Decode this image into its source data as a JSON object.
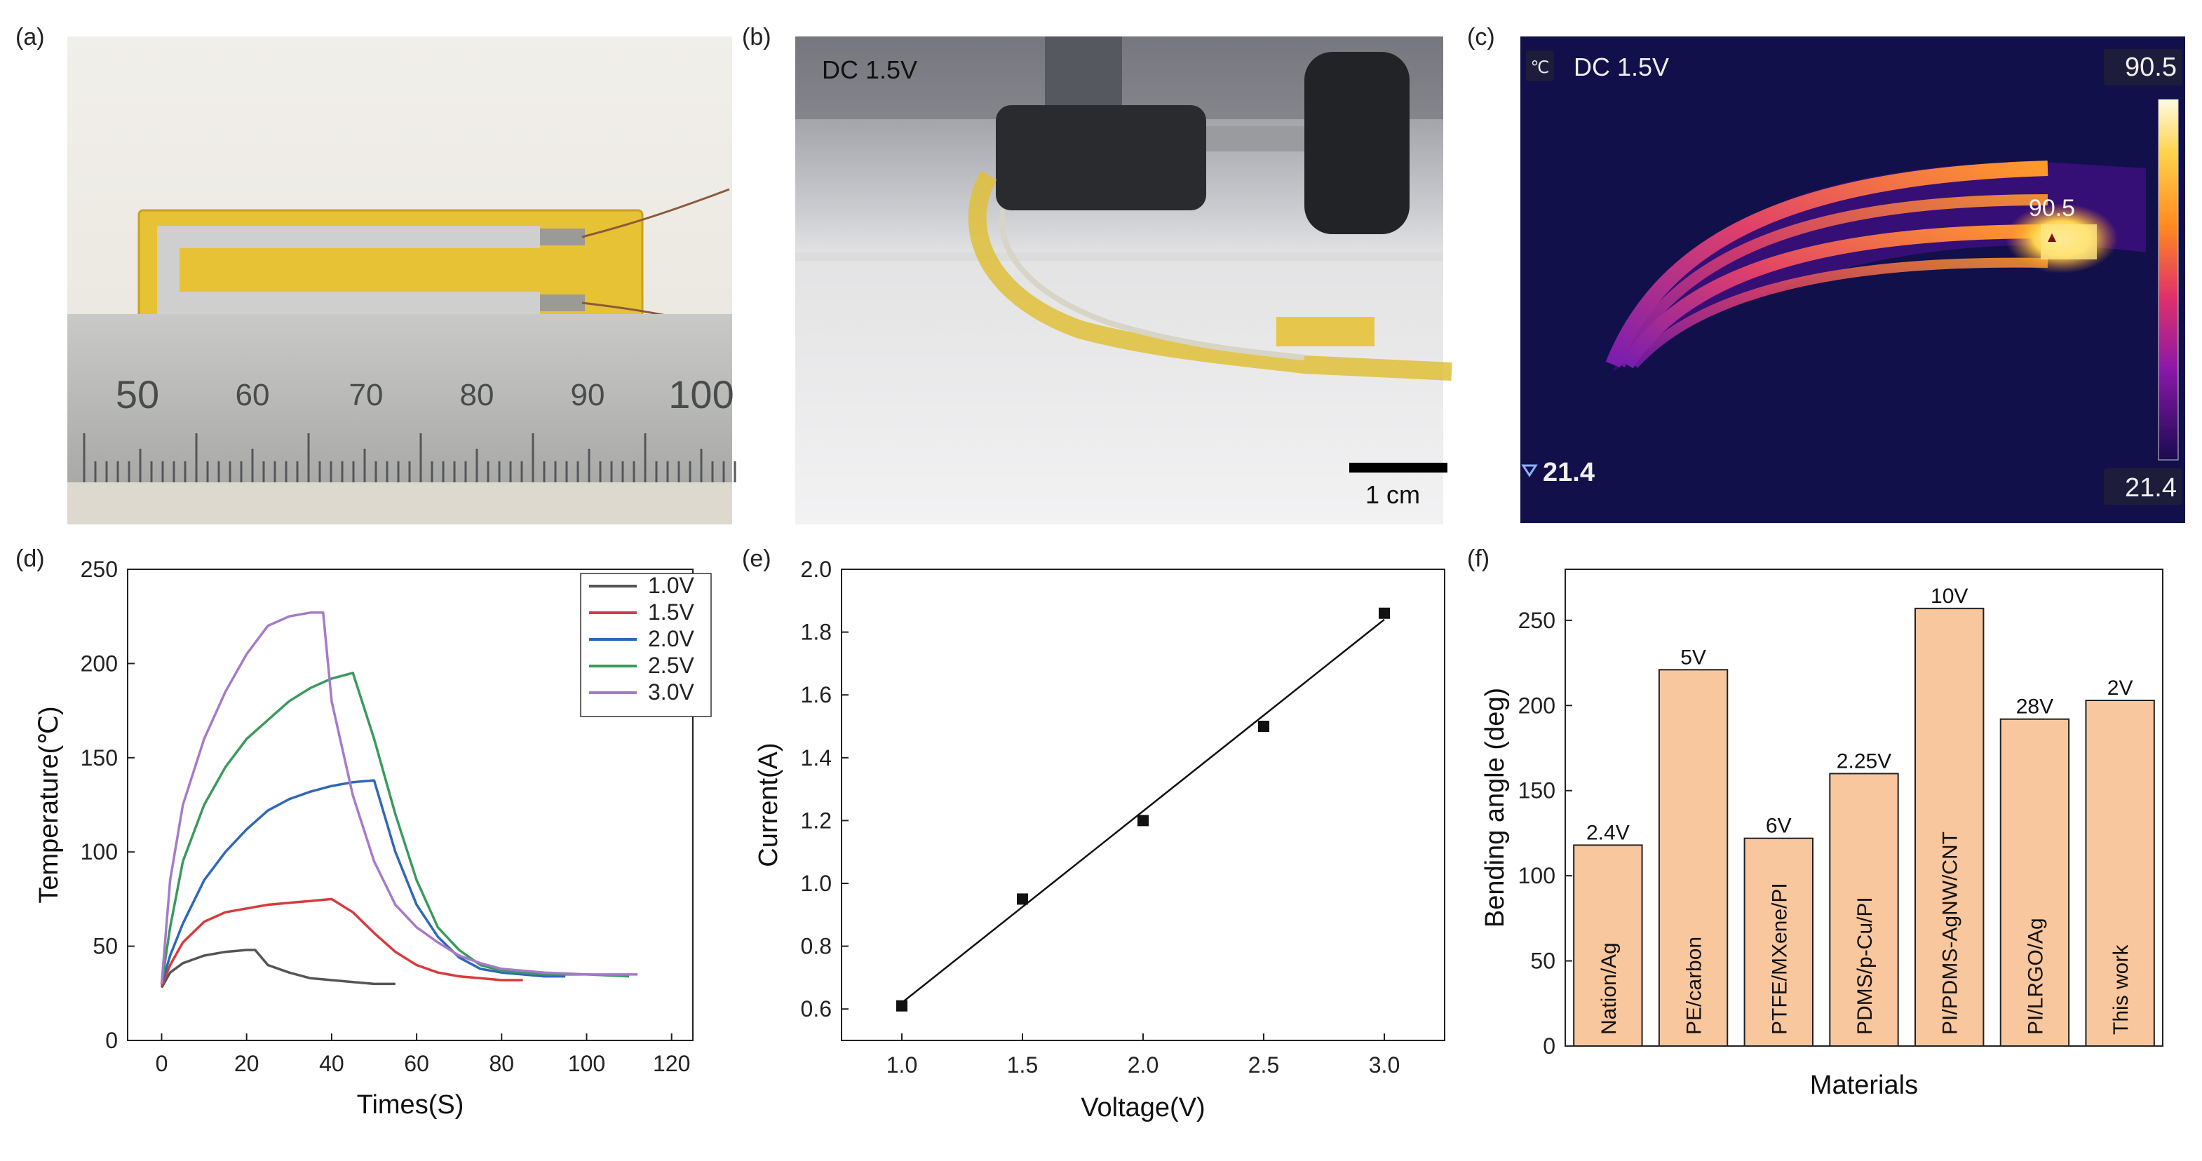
{
  "panels": {
    "a": {
      "label": "(a)",
      "ruler_numbers": [
        "50",
        "60",
        "70",
        "80",
        "90",
        "100"
      ]
    },
    "b": {
      "label": "(b)",
      "overlay_text": "DC 1.5V",
      "scale_bar_text": "1 cm"
    },
    "c": {
      "label": "(c)",
      "unit_icon": "℃",
      "overlay_text": "DC 1.5V",
      "max_value": "90.5",
      "min_value": "21.4",
      "hotspot_value": "90.5",
      "min_marker_value": "21.4"
    },
    "d": {
      "label": "(d)"
    },
    "e": {
      "label": "(e)"
    },
    "f": {
      "label": "(f)"
    }
  },
  "chart_data": [
    {
      "id": "d",
      "type": "line",
      "xlabel": "Times(S)",
      "ylabel": "Temperature(℃)",
      "xlim": [
        -8,
        125
      ],
      "ylim": [
        0,
        250
      ],
      "xticks": [
        0,
        20,
        40,
        60,
        80,
        100,
        120
      ],
      "yticks": [
        0,
        50,
        100,
        150,
        200,
        250
      ],
      "legend": "top-right",
      "series": [
        {
          "name": "1.0V",
          "color": "#555555",
          "x": [
            0,
            2,
            5,
            10,
            15,
            20,
            22,
            25,
            30,
            35,
            40,
            45,
            50,
            55
          ],
          "y": [
            28,
            36,
            41,
            45,
            47,
            48,
            48,
            40,
            36,
            33,
            32,
            31,
            30,
            30
          ]
        },
        {
          "name": "1.5V",
          "color": "#d93a3a",
          "x": [
            0,
            2,
            5,
            10,
            15,
            20,
            25,
            30,
            35,
            40,
            45,
            50,
            55,
            60,
            65,
            70,
            75,
            80,
            85
          ],
          "y": [
            29,
            40,
            52,
            63,
            68,
            70,
            72,
            73,
            74,
            75,
            68,
            57,
            47,
            40,
            36,
            34,
            33,
            32,
            32
          ]
        },
        {
          "name": "2.0V",
          "color": "#2f67b8",
          "x": [
            0,
            2,
            5,
            10,
            15,
            20,
            25,
            30,
            35,
            40,
            45,
            50,
            55,
            60,
            65,
            70,
            75,
            80,
            85,
            90,
            95
          ],
          "y": [
            30,
            45,
            62,
            85,
            100,
            112,
            122,
            128,
            132,
            135,
            137,
            138,
            100,
            72,
            55,
            44,
            38,
            36,
            35,
            34,
            34
          ]
        },
        {
          "name": "2.5V",
          "color": "#3a9a5c",
          "x": [
            0,
            2,
            5,
            10,
            15,
            20,
            25,
            30,
            35,
            40,
            45,
            50,
            55,
            60,
            65,
            70,
            75,
            80,
            90,
            100,
            110
          ],
          "y": [
            30,
            60,
            95,
            125,
            145,
            160,
            170,
            180,
            187,
            192,
            195,
            160,
            120,
            85,
            60,
            48,
            40,
            37,
            35,
            35,
            34
          ]
        },
        {
          "name": "3.0V",
          "color": "#a67ac9",
          "x": [
            0,
            2,
            5,
            10,
            15,
            20,
            25,
            30,
            35,
            38,
            40,
            45,
            50,
            55,
            60,
            65,
            70,
            75,
            80,
            90,
            100,
            112
          ],
          "y": [
            30,
            85,
            125,
            160,
            185,
            205,
            220,
            225,
            227,
            227,
            180,
            130,
            95,
            72,
            60,
            52,
            45,
            41,
            38,
            36,
            35,
            35
          ]
        }
      ]
    },
    {
      "id": "e",
      "type": "scatter",
      "xlabel": "Voltage(V)",
      "ylabel": "Current(A)",
      "xlim": [
        0.75,
        3.25
      ],
      "ylim": [
        0.5,
        2.0
      ],
      "xticks": [
        "1.0",
        "1.5",
        "2.0",
        "2.5",
        "3.0"
      ],
      "yticks": [
        "0.6",
        "0.8",
        "1.0",
        "1.2",
        "1.4",
        "1.6",
        "1.8",
        "2.0"
      ],
      "points": {
        "x": [
          1.0,
          1.5,
          2.0,
          2.5,
          3.0
        ],
        "y": [
          0.61,
          0.95,
          1.2,
          1.5,
          1.86
        ]
      },
      "fit_line": {
        "x": [
          1.0,
          3.0
        ],
        "y": [
          0.62,
          1.84
        ]
      }
    },
    {
      "id": "f",
      "type": "bar",
      "xlabel": "Materials",
      "ylabel": "Bending angle (deg)",
      "ylim": [
        0,
        280
      ],
      "yticks": [
        0,
        50,
        100,
        150,
        200,
        250
      ],
      "bar_color": "#f9c79e",
      "categories": [
        "Nation/Ag",
        "PE/carbon",
        "PTFE/MXene/PI",
        "PDMS/p-Cu/PI",
        "PI/PDMS-AgNW/CNT",
        "PI/LRGO/Ag",
        "This work"
      ],
      "values": [
        118,
        221,
        122,
        160,
        257,
        192,
        203
      ],
      "voltage_labels": [
        "2.4V",
        "5V",
        "6V",
        "2.25V",
        "10V",
        "28V",
        "2V"
      ]
    }
  ]
}
